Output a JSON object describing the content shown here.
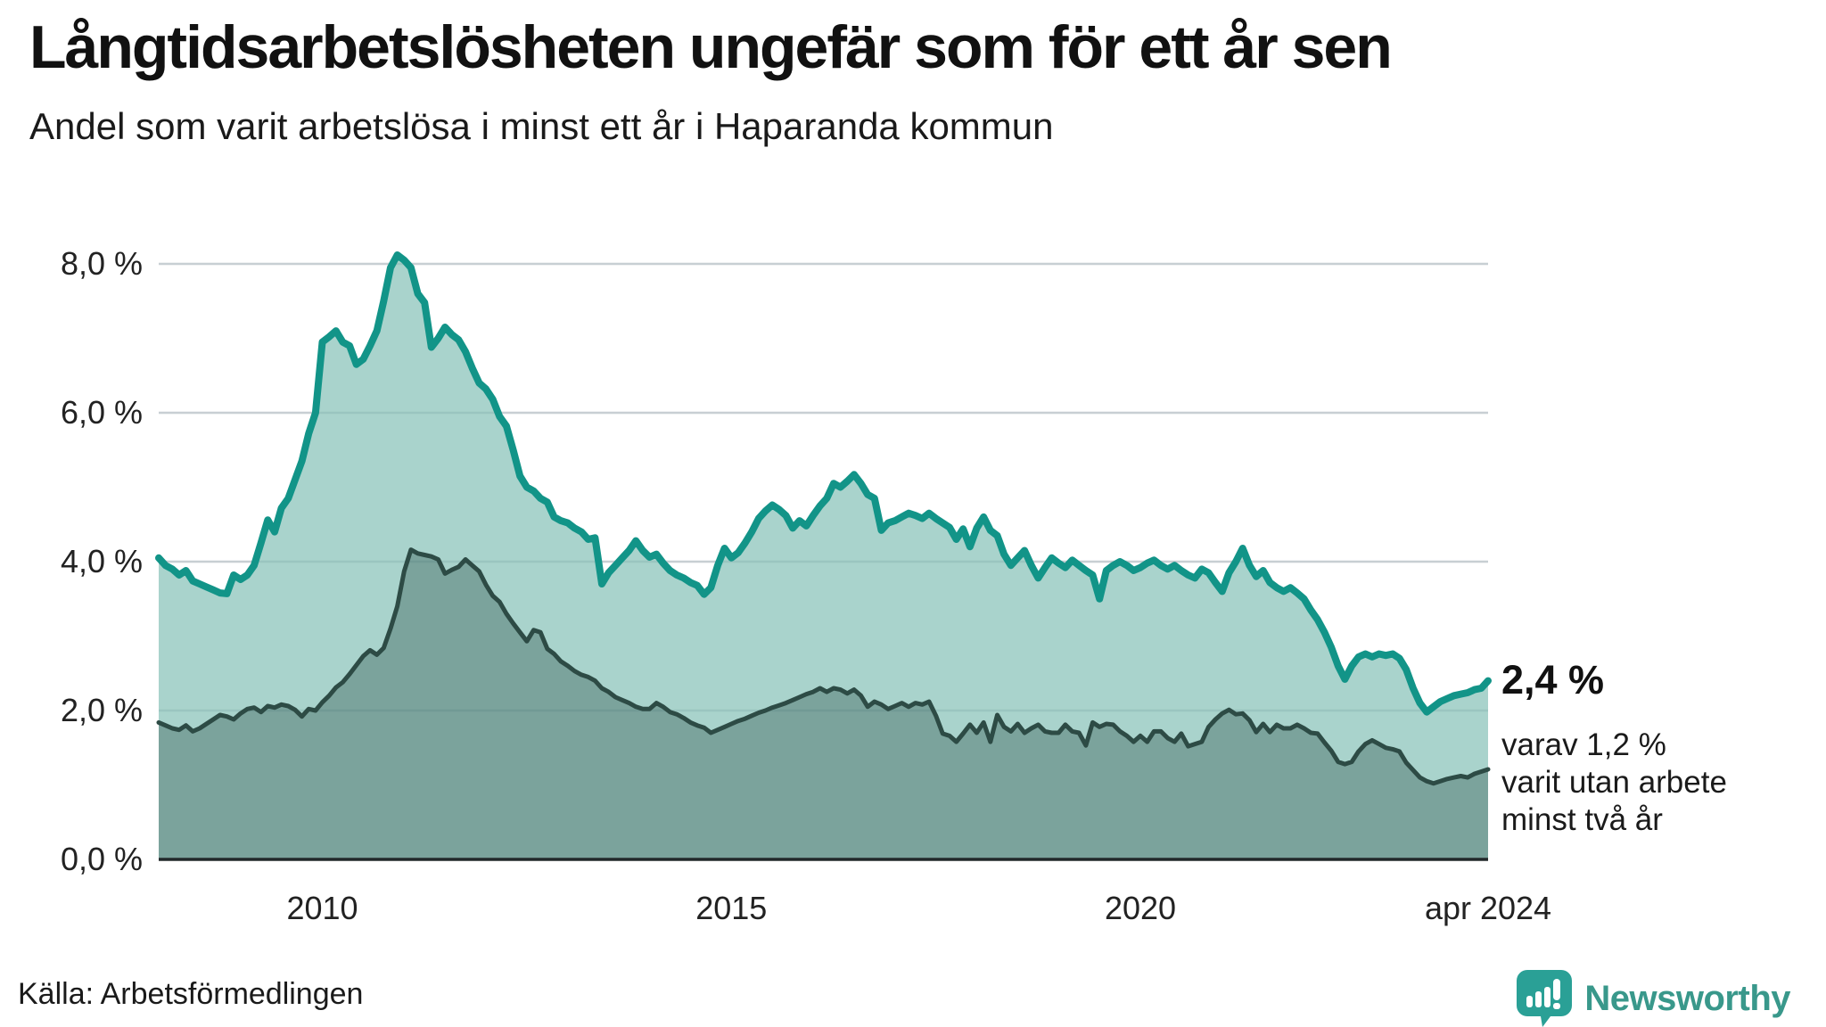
{
  "header": {
    "title": "Långtidsarbetslösheten ungefär som för ett år sen",
    "subtitle": "Andel som varit arbetslösa i minst ett år i Haparanda kommun"
  },
  "annotation": {
    "headline": "2,4 %",
    "lines": [
      "varav 1,2 %",
      "varit utan arbete",
      "minst två år"
    ]
  },
  "source": "Källa: Arbetsförmedlingen",
  "branding": {
    "logo_text": "Newsworthy",
    "logo_icon": "speech-bubble-bar-chart",
    "brand_color": "#39988b",
    "icon_color": "#2aa096"
  },
  "colors": {
    "line_1yr": "#129488",
    "fill_1yr": "#a9d3cc",
    "line_2yr": "#2d4b45",
    "fill_2yr": "#7ba39c",
    "gridline": "#dcdee1",
    "grid_overlay": "rgba(30,80,90,0.10)",
    "baseline": "#22282a"
  },
  "chart_data": {
    "type": "area",
    "title": "Långtidsarbetslösheten ungefär som för ett år sen",
    "subtitle": "Andel som varit arbetslösa i minst ett år i Haparanda kommun",
    "unit": "%",
    "x_range": [
      2008.0,
      2024.25
    ],
    "ylim": [
      0,
      8.6
    ],
    "grid": true,
    "x_ticks": [
      {
        "label": "2010",
        "year": 2010
      },
      {
        "label": "2015",
        "year": 2015
      },
      {
        "label": "2020",
        "year": 2020
      },
      {
        "label": "apr 2024",
        "year": 2024.25
      }
    ],
    "y_ticks": [
      {
        "label": "0,0 %",
        "value": 0
      },
      {
        "label": "2,0 %",
        "value": 2
      },
      {
        "label": "4,0 %",
        "value": 4
      },
      {
        "label": "6,0 %",
        "value": 6
      },
      {
        "label": "8,0 %",
        "value": 8
      }
    ],
    "series": [
      {
        "name": "Andel arbetslösa minst ett år",
        "color": "#129488",
        "fill": "#a9d3cc",
        "line_width": 8,
        "start_year": 2008,
        "step_months": 1,
        "end_label": "2,4 %",
        "values": [
          4.05,
          3.95,
          3.9,
          3.82,
          3.88,
          3.74,
          3.7,
          3.66,
          3.62,
          3.58,
          3.57,
          3.82,
          3.76,
          3.82,
          3.95,
          4.25,
          4.56,
          4.4,
          4.72,
          4.85,
          5.1,
          5.35,
          5.72,
          6.0,
          6.95,
          7.02,
          7.1,
          6.95,
          6.9,
          6.65,
          6.72,
          6.9,
          7.1,
          7.5,
          7.95,
          8.12,
          8.05,
          7.95,
          7.6,
          7.48,
          6.88,
          7.0,
          7.15,
          7.05,
          6.98,
          6.82,
          6.6,
          6.4,
          6.32,
          6.18,
          5.95,
          5.82,
          5.5,
          5.15,
          5.0,
          4.95,
          4.85,
          4.8,
          4.6,
          4.55,
          4.52,
          4.45,
          4.4,
          4.3,
          4.32,
          3.7,
          3.85,
          3.95,
          4.05,
          4.15,
          4.28,
          4.15,
          4.06,
          4.1,
          3.98,
          3.88,
          3.82,
          3.78,
          3.72,
          3.68,
          3.56,
          3.65,
          3.95,
          4.18,
          4.05,
          4.12,
          4.25,
          4.4,
          4.58,
          4.68,
          4.76,
          4.7,
          4.62,
          4.45,
          4.55,
          4.48,
          4.62,
          4.75,
          4.85,
          5.05,
          5.0,
          5.08,
          5.17,
          5.05,
          4.9,
          4.85,
          4.42,
          4.52,
          4.55,
          4.6,
          4.65,
          4.62,
          4.58,
          4.65,
          4.58,
          4.52,
          4.46,
          4.3,
          4.44,
          4.2,
          4.45,
          4.6,
          4.42,
          4.35,
          4.1,
          3.95,
          4.05,
          4.15,
          3.95,
          3.78,
          3.92,
          4.05,
          3.98,
          3.92,
          4.02,
          3.95,
          3.88,
          3.82,
          3.5,
          3.88,
          3.95,
          4.0,
          3.95,
          3.88,
          3.92,
          3.98,
          4.02,
          3.95,
          3.9,
          3.95,
          3.88,
          3.82,
          3.78,
          3.9,
          3.85,
          3.72,
          3.6,
          3.85,
          4.0,
          4.18,
          3.95,
          3.8,
          3.88,
          3.72,
          3.65,
          3.6,
          3.65,
          3.58,
          3.5,
          3.35,
          3.22,
          3.05,
          2.85,
          2.6,
          2.42,
          2.6,
          2.72,
          2.76,
          2.72,
          2.76,
          2.74,
          2.76,
          2.7,
          2.55,
          2.3,
          2.1,
          1.98,
          2.05,
          2.12,
          2.16,
          2.2,
          2.22,
          2.24,
          2.28,
          2.3,
          2.4
        ]
      },
      {
        "name": "Andel arbetslösa minst två år",
        "color": "#2d4b45",
        "fill": "#7ba39c",
        "line_width": 5,
        "start_year": 2008,
        "step_months": 1,
        "end_label": "1,2 %",
        "values": [
          1.84,
          1.8,
          1.76,
          1.74,
          1.8,
          1.72,
          1.76,
          1.82,
          1.88,
          1.94,
          1.92,
          1.88,
          1.96,
          2.02,
          2.04,
          1.98,
          2.06,
          2.04,
          2.08,
          2.06,
          2.01,
          1.92,
          2.02,
          2.0,
          2.11,
          2.2,
          2.31,
          2.38,
          2.49,
          2.61,
          2.73,
          2.81,
          2.75,
          2.84,
          3.1,
          3.4,
          3.87,
          4.16,
          4.11,
          4.09,
          4.07,
          4.03,
          3.84,
          3.89,
          3.93,
          4.03,
          3.95,
          3.87,
          3.69,
          3.54,
          3.46,
          3.3,
          3.17,
          3.05,
          2.93,
          3.08,
          3.05,
          2.83,
          2.76,
          2.66,
          2.6,
          2.53,
          2.48,
          2.45,
          2.4,
          2.3,
          2.25,
          2.18,
          2.14,
          2.1,
          2.05,
          2.02,
          2.02,
          2.1,
          2.05,
          1.98,
          1.95,
          1.9,
          1.84,
          1.8,
          1.77,
          1.7,
          1.74,
          1.78,
          1.82,
          1.86,
          1.89,
          1.93,
          1.97,
          2.0,
          2.04,
          2.07,
          2.1,
          2.14,
          2.18,
          2.22,
          2.25,
          2.3,
          2.25,
          2.3,
          2.28,
          2.23,
          2.28,
          2.2,
          2.05,
          2.12,
          2.08,
          2.02,
          2.06,
          2.1,
          2.05,
          2.1,
          2.08,
          2.12,
          1.93,
          1.69,
          1.66,
          1.58,
          1.69,
          1.81,
          1.7,
          1.84,
          1.58,
          1.94,
          1.78,
          1.72,
          1.82,
          1.7,
          1.76,
          1.81,
          1.72,
          1.7,
          1.7,
          1.81,
          1.72,
          1.7,
          1.53,
          1.84,
          1.78,
          1.82,
          1.81,
          1.72,
          1.66,
          1.58,
          1.66,
          1.58,
          1.72,
          1.72,
          1.63,
          1.58,
          1.69,
          1.52,
          1.55,
          1.58,
          1.78,
          1.88,
          1.96,
          2.01,
          1.95,
          1.96,
          1.87,
          1.71,
          1.82,
          1.71,
          1.81,
          1.76,
          1.76,
          1.81,
          1.76,
          1.7,
          1.69,
          1.57,
          1.46,
          1.31,
          1.28,
          1.31,
          1.45,
          1.55,
          1.6,
          1.55,
          1.5,
          1.48,
          1.45,
          1.3,
          1.2,
          1.1,
          1.05,
          1.02,
          1.05,
          1.08,
          1.1,
          1.12,
          1.1,
          1.15,
          1.18,
          1.21
        ]
      }
    ]
  }
}
